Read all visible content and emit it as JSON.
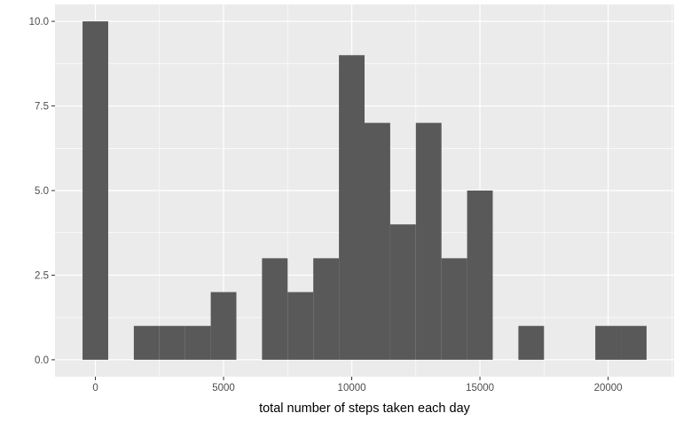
{
  "chart_data": {
    "type": "histogram",
    "title": "",
    "xlabel": "total number of steps taken each day",
    "ylabel": "",
    "binwidth": 1000,
    "bins": [
      {
        "center": 0,
        "count": 10
      },
      {
        "center": 2000,
        "count": 1
      },
      {
        "center": 3000,
        "count": 1
      },
      {
        "center": 4000,
        "count": 1
      },
      {
        "center": 5000,
        "count": 2
      },
      {
        "center": 7000,
        "count": 3
      },
      {
        "center": 8000,
        "count": 2
      },
      {
        "center": 9000,
        "count": 3
      },
      {
        "center": 10000,
        "count": 9
      },
      {
        "center": 11000,
        "count": 7
      },
      {
        "center": 12000,
        "count": 4
      },
      {
        "center": 13000,
        "count": 7
      },
      {
        "center": 14000,
        "count": 3
      },
      {
        "center": 15000,
        "count": 5
      },
      {
        "center": 17000,
        "count": 1
      },
      {
        "center": 20000,
        "count": 1
      },
      {
        "center": 21000,
        "count": 1
      }
    ],
    "xlim": [
      -1575,
      22575
    ],
    "ylim": [
      -0.5,
      10.5
    ],
    "x_ticks": [
      0,
      5000,
      10000,
      15000,
      20000
    ],
    "x_tick_labels": [
      "0",
      "5000",
      "10000",
      "15000",
      "20000"
    ],
    "y_ticks": [
      0,
      2.5,
      5,
      7.5,
      10
    ],
    "y_tick_labels": [
      "0.0",
      "2.5",
      "5.0",
      "7.5",
      "10.0"
    ],
    "grid": true,
    "colors": {
      "bar": "#595959",
      "panel": "#ebebeb",
      "grid_major": "#ffffff",
      "tick": "#333333"
    }
  }
}
